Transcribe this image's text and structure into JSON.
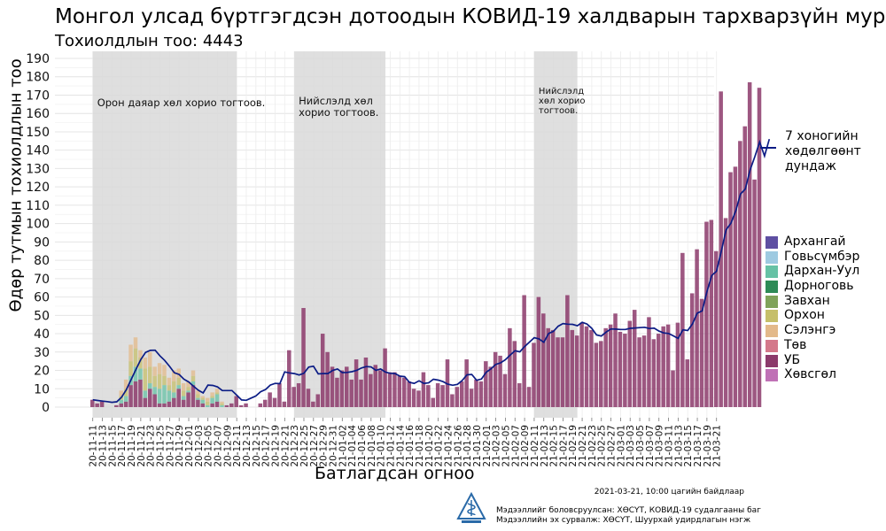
{
  "title": "Монгол улсад бүртгэгдсэн дотоодын КОВИД-19 халдварын тархварзүйн муруй",
  "subtitle": "Тохиолдлын тоо: 4443",
  "chart_data": {
    "type": "bar",
    "stacked": true,
    "xlabel": "Батлагдсан огноо",
    "ylabel": "Өдөр тутмын тохиолдлын тоо",
    "ylim": [
      0,
      190
    ],
    "yticks": [
      0,
      10,
      20,
      30,
      40,
      50,
      60,
      70,
      80,
      90,
      100,
      110,
      120,
      130,
      140,
      150,
      160,
      170,
      180,
      190
    ],
    "grid": true,
    "x_start": "2020-11-11",
    "x_end": "2021-03-21",
    "xticks": [
      "20-11-11",
      "20-11-13",
      "20-11-15",
      "20-11-17",
      "20-11-19",
      "20-11-21",
      "20-11-23",
      "20-11-25",
      "20-11-27",
      "20-11-29",
      "20-12-01",
      "20-12-03",
      "20-12-05",
      "20-12-07",
      "20-12-09",
      "20-12-11",
      "20-12-13",
      "20-12-15",
      "20-12-17",
      "20-12-19",
      "20-12-21",
      "20-12-23",
      "20-12-25",
      "20-12-27",
      "20-12-29",
      "20-12-31",
      "21-01-02",
      "21-01-04",
      "21-01-06",
      "21-01-08",
      "21-01-10",
      "21-01-12",
      "21-01-14",
      "21-01-16",
      "21-01-18",
      "21-01-20",
      "21-01-22",
      "21-01-24",
      "21-01-26",
      "21-01-28",
      "21-01-30",
      "21-02-01",
      "21-02-03",
      "21-02-05",
      "21-02-07",
      "21-02-09",
      "21-02-11",
      "21-02-13",
      "21-02-15",
      "21-02-17",
      "21-02-19",
      "21-02-21",
      "21-02-23",
      "21-02-25",
      "21-02-27",
      "21-03-01",
      "21-03-03",
      "21-03-05",
      "21-03-07",
      "21-03-09",
      "21-03-11",
      "21-03-13",
      "21-03-15",
      "21-03-17",
      "21-03-19",
      "21-03-21"
    ],
    "shaded_periods": [
      {
        "start": "2020-11-11",
        "end": "2020-12-11",
        "label": "Орон даяар хөл хорио тогтоов."
      },
      {
        "start": "2020-12-23",
        "end": "2021-01-11",
        "label": "Нийслэлд хөл хорио тогтоов."
      },
      {
        "start": "2021-02-11",
        "end": "2021-02-20",
        "label": "Нийслэлд хөл хорио тогтоов."
      }
    ],
    "categories": [
      "Архангай",
      "Говьсүмбэр",
      "Дархан-Уул",
      "Дорноговь",
      "Завхан",
      "Орхон",
      "Сэлэнгэ",
      "Төв",
      "УБ",
      "Хөвсгөл"
    ],
    "colors": [
      "#5e4fa2",
      "#9ecae1",
      "#66c2a5",
      "#2e8b57",
      "#7fa35a",
      "#c6bf6a",
      "#e3b98a",
      "#d4788a",
      "#8c3a6b",
      "#c071b6"
    ],
    "ub_daily": [
      4,
      2,
      3,
      0,
      0,
      1,
      2,
      3,
      12,
      14,
      15,
      5,
      10,
      7,
      2,
      2,
      3,
      5,
      10,
      4,
      8,
      12,
      4,
      2,
      0,
      2,
      3,
      0,
      1,
      2,
      6,
      1,
      2,
      0,
      0,
      2,
      4,
      8,
      5,
      13,
      3,
      31,
      11,
      13,
      54,
      10,
      3,
      7,
      40,
      30,
      22,
      16,
      20,
      22,
      15,
      26,
      15,
      27,
      18,
      23,
      20,
      32,
      19,
      19,
      17,
      16,
      14,
      10,
      9,
      19,
      12,
      5,
      13,
      12,
      26,
      7,
      11,
      14,
      26,
      10,
      15,
      14,
      25,
      22,
      30,
      28,
      18,
      43,
      36,
      13,
      61,
      11,
      35,
      60,
      51,
      43,
      42,
      38,
      38,
      61,
      42,
      39,
      46,
      44,
      42,
      35,
      36,
      43,
      45,
      51,
      41,
      40,
      47,
      53,
      38,
      39,
      49,
      37,
      40,
      44,
      45,
      20,
      46,
      84,
      26,
      62,
      86,
      59,
      101,
      102,
      85,
      172,
      103,
      128,
      131,
      145,
      153,
      177,
      124,
      174
    ],
    "other_daily": [
      {
        "Завхан": 0
      },
      {
        "Орхон": 0
      }
    ],
    "stack_daily": [
      {
        "date": "2020-11-17",
        "Дархан-Уул": 2,
        "Сэлэнгэ": 3,
        "Орхон": 2
      },
      {
        "date": "2020-11-18",
        "Дархан-Уул": 3,
        "Сэлэнгэ": 5,
        "Орхон": 4
      },
      {
        "date": "2020-11-19",
        "Дархан-Уул": 5,
        "Сэлэнгэ": 9,
        "Орхон": 8
      },
      {
        "date": "2020-11-20",
        "Дархан-Уул": 8,
        "Сэлэнгэ": 6,
        "Орхон": 10
      },
      {
        "date": "2020-11-21",
        "Дархан-Уул": 6,
        "Сэлэнгэ": 4,
        "Орхон": 6
      },
      {
        "date": "2020-11-22",
        "Дархан-Уул": 4,
        "Сэлэнгэ": 6,
        "Орхон": 12
      },
      {
        "date": "2020-11-23",
        "Дархан-Уул": 3,
        "Сэлэнгэ": 8,
        "Орхон": 9
      },
      {
        "date": "2020-11-24",
        "Дархан-Уул": 4,
        "Сэлэнгэ": 5,
        "Орхон": 6
      },
      {
        "date": "2020-11-25",
        "Дархан-Уул": 8,
        "Сэлэнгэ": 6,
        "Орхон": 8
      },
      {
        "date": "2020-11-26",
        "Дархан-Уул": 10,
        "Сэлэнгэ": 6,
        "Орхон": 5
      },
      {
        "date": "2020-11-27",
        "Дархан-Уул": 6,
        "Сэлэнгэ": 4,
        "Орхон": 3
      },
      {
        "date": "2020-11-28",
        "Дархан-Уул": 3,
        "Сэлэнгэ": 6,
        "Орхон": 6
      },
      {
        "date": "2020-11-29",
        "Дархан-Уул": 2,
        "Сэлэнгэ": 5,
        "Орхон": 4
      },
      {
        "date": "2020-11-30",
        "Дархан-Уул": 2,
        "Сэлэнгэ": 4,
        "Орхон": 3
      },
      {
        "date": "2020-12-01",
        "Дархан-Уул": 1,
        "Сэлэнгэ": 3,
        "Орхон": 2
      },
      {
        "date": "2020-12-02",
        "Дархан-Уул": 2,
        "Сэлэнгэ": 3,
        "Орхон": 3
      },
      {
        "date": "2020-12-03",
        "Дархан-Уул": 1,
        "Сэлэнгэ": 2,
        "Орхон": 2
      },
      {
        "date": "2020-12-04",
        "Дархан-Уул": 2,
        "Сэлэнгэ": 1,
        "Орхон": 1
      },
      {
        "date": "2020-12-05",
        "Дархан-Уул": 1,
        "Сэлэнгэ": 2,
        "Орхон": 2
      },
      {
        "date": "2020-12-06",
        "Дархан-Уул": 3,
        "Сэлэнгэ": 2,
        "Орхон": 1
      },
      {
        "date": "2020-12-07",
        "Дархан-Уул": 4,
        "Сэлэнгэ": 2,
        "Орхон": 1
      },
      {
        "date": "2020-12-08",
        "Дархан-Уул": 1,
        "Сэлэнгэ": 1,
        "Орхон": 1
      }
    ],
    "moving_average_name": "7 хоногийн\nхөдөлгөөнт\nдундаж",
    "moving_average": [
      4,
      3.6,
      3.3,
      3,
      2.6,
      2.9,
      5.4,
      9.5,
      15,
      20.5,
      25.9,
      29.8,
      30.9,
      31,
      27.9,
      25.4,
      22.2,
      18.7,
      17.8,
      15.2,
      13.7,
      11.4,
      9.2,
      7.7,
      12,
      11.8,
      11,
      9,
      9,
      9,
      6.5,
      3.9,
      3.7,
      4.9,
      6.1,
      8.4,
      9.6,
      12,
      12.9,
      12.8,
      19.2,
      18.6,
      18.3,
      17.5,
      18.4,
      21.8,
      22.3,
      18.1,
      18.3,
      18.3,
      20,
      20.8,
      18.8,
      18.9,
      19.3,
      20,
      21.3,
      22.1,
      21.9,
      20,
      20.8,
      19.1,
      18.4,
      18.3,
      16.9,
      16.6,
      13.5,
      12.9,
      14.3,
      12.9,
      13.2,
      15.2,
      14.7,
      13.9,
      12.5,
      11.9,
      12.4,
      14.5,
      17.6,
      17.8,
      14.6,
      15.3,
      19,
      20.9,
      23.3,
      24.1,
      25.8,
      28.3,
      30.7,
      30.1,
      33,
      35.4,
      37.8,
      37.2,
      35.3,
      40.1,
      41.3,
      44.1,
      45.5,
      45.2,
      45.1,
      44.3,
      46.2,
      45.3,
      42.9,
      39.3,
      38.7,
      40.9,
      42.6,
      42.5,
      42.3,
      42.3,
      42.9,
      43.1,
      43.3,
      43.5,
      42.8,
      43,
      41.4,
      40.4,
      40.1,
      38.8,
      37.4,
      42.1,
      41.7,
      45.4,
      51.2,
      52.4,
      62.9,
      71.7,
      74,
      84.9,
      96.6,
      100.2,
      106.9,
      116.1,
      118.8,
      129.2,
      136.5,
      144.5,
      136.8,
      146
    ]
  },
  "legend": {
    "moving_average": "7 хоногийн\nхөдөлгөөнт\nдундаж",
    "categories": [
      "Архангай",
      "Говьсүмбэр",
      "Дархан-Уул",
      "Дорноговь",
      "Завхан",
      "Орхон",
      "Сэлэнгэ",
      "Төв",
      "УБ",
      "Хөвсгөл"
    ]
  },
  "footer": {
    "timestamp": "2021-03-21, 10:00 цагийн байдлаар",
    "prepared_by": "Мэдээллийг боловсруулсан: ХӨСҮТ, КОВИД-19 судалгааны баг",
    "source": "Мэдээллийн эх сурвалж: ХӨСҮТ, Шуурхай удирдлагын нэгж"
  }
}
